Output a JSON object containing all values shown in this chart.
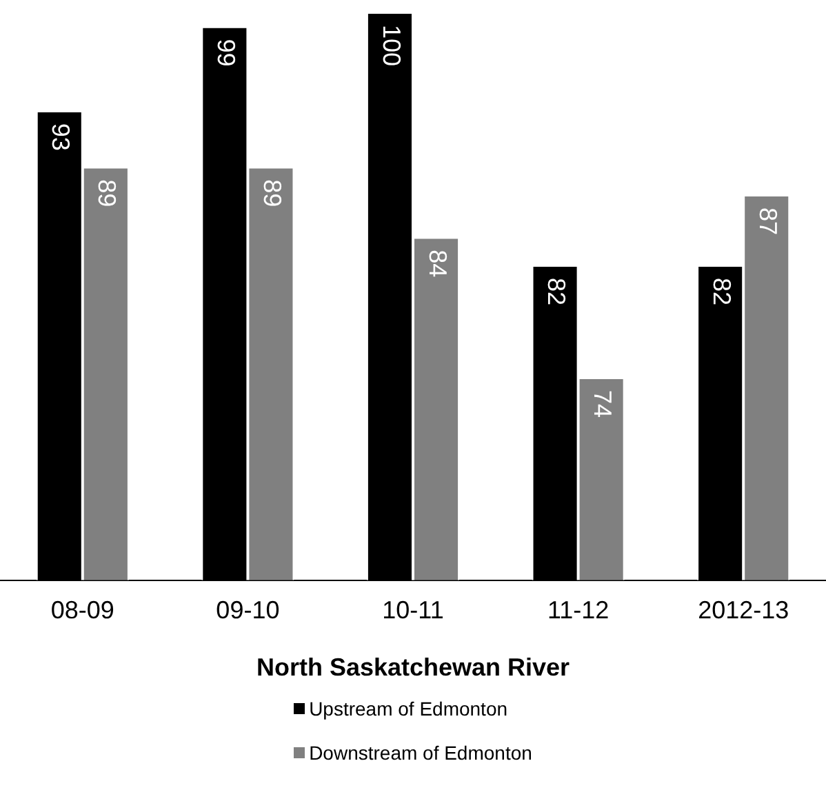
{
  "chart_data": {
    "type": "bar",
    "xlabel": "North Saskatchewan River",
    "categories": [
      "08-09",
      "09-10",
      "10-11",
      "11-12",
      "2012-13"
    ],
    "series": [
      {
        "name": "Upstream of Edmonton",
        "color": "#000000",
        "values": [
          93,
          99,
          100,
          82,
          82
        ]
      },
      {
        "name": "Downstream of Edmonton",
        "color": "#808080",
        "values": [
          89,
          89,
          84,
          74,
          87
        ]
      }
    ],
    "tick_labels": "x",
    "data_labels": true,
    "grid": false,
    "legend": "bottom"
  }
}
